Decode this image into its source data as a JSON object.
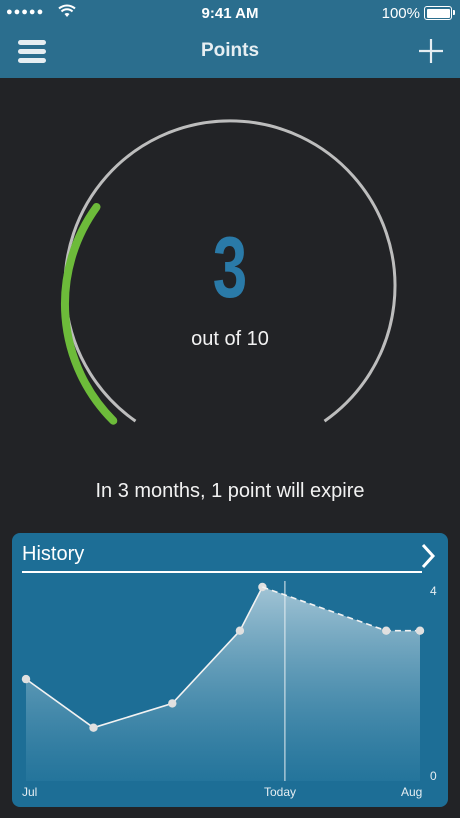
{
  "status_bar": {
    "signal": "●●●●●",
    "time": "9:41 AM",
    "battery": "100%"
  },
  "nav": {
    "title": "Points",
    "menu_icon": "hamburger-menu-icon",
    "add_icon": "plus-icon"
  },
  "gauge": {
    "value": "3",
    "caption": "out of 10",
    "points": 3,
    "max": 10,
    "progress_color": "#6dbb3a",
    "track_color": "#bdbdbd",
    "value_color": "#2a7aa8"
  },
  "message": "In 3 months, 1 point will expire",
  "history": {
    "title": "History",
    "open_icon": "chevron-right-icon",
    "x_labels": [
      "Jul",
      "Today",
      "Aug"
    ],
    "y_labels": [
      "4",
      "0"
    ],
    "chart_data": {
      "type": "area",
      "ylim": [
        0,
        4
      ],
      "xlabel": "",
      "ylabel": "",
      "series": [
        {
          "x": [
            0,
            0.3,
            0.65,
            0.95,
            1.05
          ],
          "y": [
            2.1,
            1.1,
            1.6,
            3.1,
            4.0
          ],
          "style": "solid"
        },
        {
          "x": [
            1.05,
            1.6,
            1.75
          ],
          "y": [
            4.0,
            3.1,
            3.1
          ],
          "style": "dashed"
        }
      ],
      "today_x": 1.15,
      "x_range": [
        0,
        1.75
      ]
    }
  }
}
